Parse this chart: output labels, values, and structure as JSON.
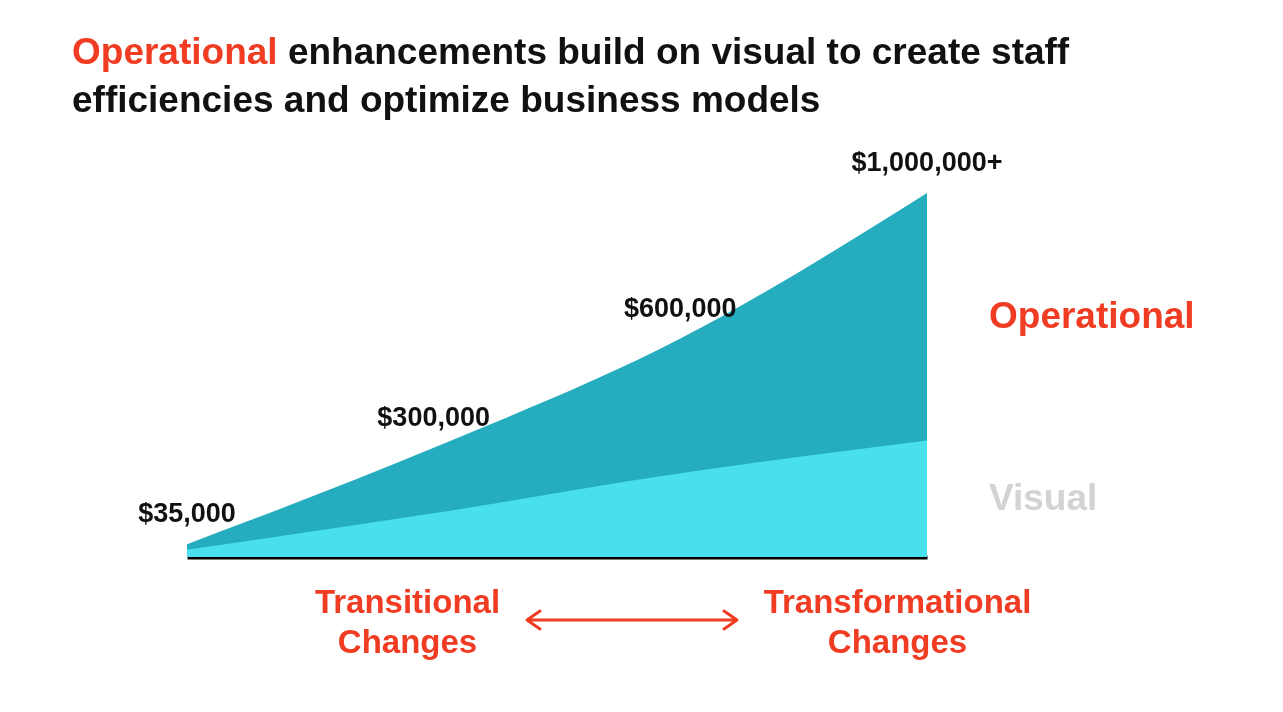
{
  "chart_data": {
    "type": "area",
    "title": "Operational enhancements build on visual to create staff efficiencies and optimize business models",
    "categories": [
      null,
      null,
      null,
      null
    ],
    "tick_labels": false,
    "series": [
      {
        "name": "Operational",
        "color": "#25adbf",
        "values": [
          35000,
          300000,
          600000,
          1000000
        ],
        "value_labels": [
          "$35,000",
          "$300,000",
          "$600,000",
          "$1,000,000+"
        ]
      },
      {
        "name": "Visual",
        "color": "#48e0ec",
        "values": [
          20000,
          120000,
          230000,
          320000
        ]
      }
    ],
    "annotations": [
      "Transitional Changes",
      "Transformational Changes"
    ]
  }
}
